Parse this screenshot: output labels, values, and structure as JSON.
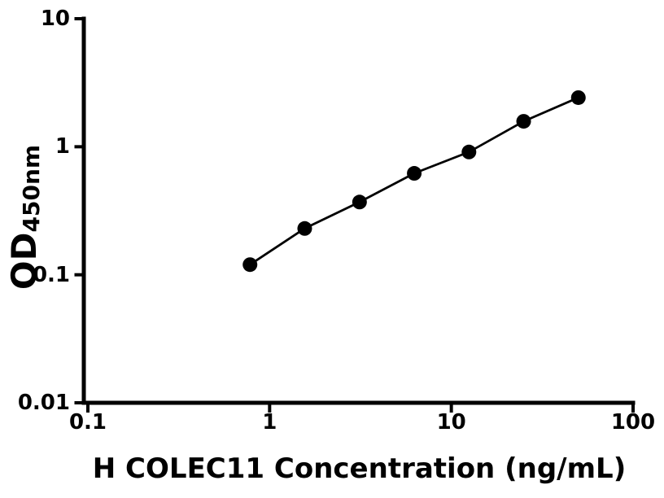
{
  "chart_data": {
    "type": "scatter",
    "subtype": "line-with-markers",
    "x": [
      0.78,
      1.56,
      3.125,
      6.25,
      12.5,
      25,
      50
    ],
    "y": [
      0.12,
      0.23,
      0.37,
      0.62,
      0.91,
      1.58,
      2.42
    ],
    "title": "",
    "xlabel": "H COLEC11 Concentration (ng/mL)",
    "ylabel_main": "OD",
    "ylabel_sub": "450nm",
    "x_scale": "log",
    "y_scale": "log",
    "xlim": [
      0.1,
      100
    ],
    "ylim": [
      0.01,
      10
    ],
    "x_ticks": [
      0.1,
      1,
      10,
      100
    ],
    "y_ticks": [
      0.01,
      0.1,
      1,
      10
    ],
    "x_tick_labels": [
      "0.1",
      "1",
      "10",
      "100"
    ],
    "y_tick_labels": [
      "0.01",
      "0.1",
      "1",
      "10"
    ],
    "grid": false,
    "legend": null,
    "line_color": "#000000",
    "marker_color": "#000000",
    "axis_color": "#000000",
    "background_color": "#ffffff"
  }
}
